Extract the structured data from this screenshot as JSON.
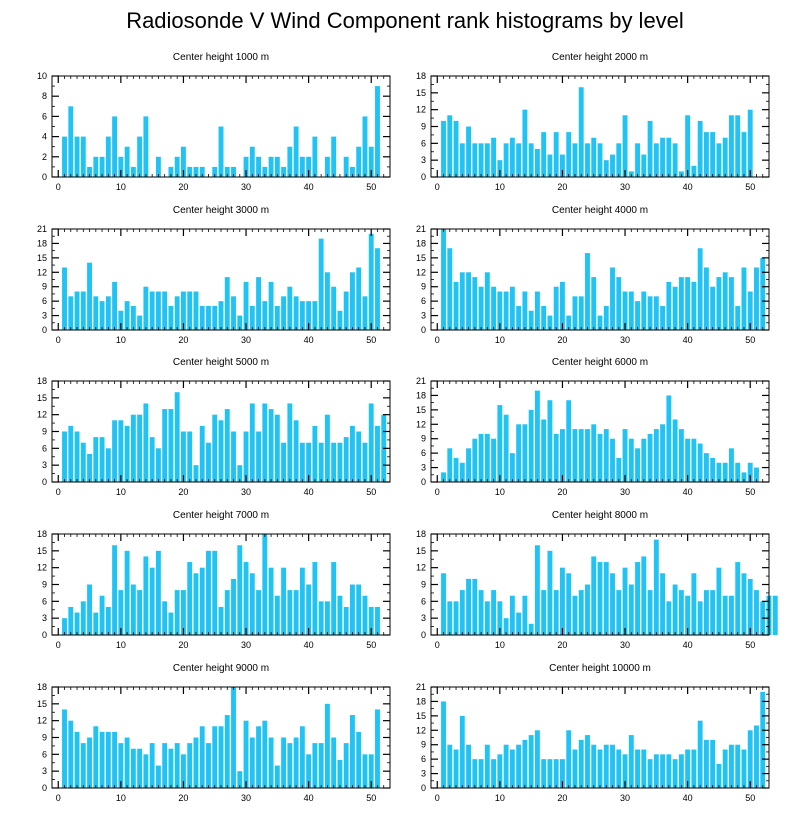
{
  "title": "Radiosonde V Wind Component rank histograms by level",
  "bar_color": "#1fc4f4",
  "chart_data": [
    {
      "type": "bar",
      "title": "Center height 1000 m",
      "xlim": [
        -1,
        53
      ],
      "ylim": [
        0,
        10
      ],
      "xticks": [
        0,
        10,
        20,
        30,
        40,
        50
      ],
      "yticks": [
        0,
        2,
        4,
        6,
        8,
        10
      ],
      "values": [
        4,
        7,
        4,
        4,
        1,
        2,
        2,
        4,
        6,
        2,
        3,
        1,
        4,
        6,
        0,
        2,
        0,
        1,
        2,
        3,
        1,
        1,
        1,
        0,
        1,
        5,
        1,
        1,
        0,
        2,
        3,
        2,
        1,
        2,
        2,
        1,
        3,
        5,
        2,
        2,
        4,
        0,
        2,
        4,
        0,
        2,
        1,
        3,
        6,
        3,
        9
      ]
    },
    {
      "type": "bar",
      "title": "Center height 2000 m",
      "xlim": [
        -1,
        53
      ],
      "ylim": [
        0,
        18
      ],
      "xticks": [
        0,
        10,
        20,
        30,
        40,
        50
      ],
      "yticks": [
        0,
        3,
        6,
        9,
        12,
        15,
        18
      ],
      "values": [
        10,
        11,
        10,
        6,
        9,
        6,
        6,
        6,
        7,
        3,
        6,
        7,
        6,
        12,
        6,
        5,
        8,
        4,
        8,
        4,
        8,
        6,
        16,
        6,
        7,
        6,
        3,
        4,
        6,
        11,
        1,
        6,
        4,
        10,
        6,
        7,
        7,
        6,
        1,
        11,
        2,
        10,
        8,
        8,
        6,
        7,
        11,
        11,
        8,
        12
      ]
    },
    {
      "type": "bar",
      "title": "Center height 3000 m",
      "xlim": [
        -1,
        53
      ],
      "ylim": [
        0,
        21
      ],
      "xticks": [
        0,
        10,
        20,
        30,
        40,
        50
      ],
      "yticks": [
        0,
        3,
        6,
        9,
        12,
        15,
        18,
        21
      ],
      "values": [
        13,
        7,
        8,
        8,
        14,
        7,
        6,
        7,
        10,
        4,
        6,
        5,
        3,
        9,
        8,
        8,
        8,
        5,
        7,
        8,
        8,
        8,
        5,
        5,
        5,
        6,
        11,
        7,
        3,
        10,
        5,
        11,
        6,
        10,
        5,
        7,
        9,
        7,
        6,
        6,
        6,
        19,
        12,
        9,
        4,
        8,
        12,
        13,
        7,
        20,
        17
      ]
    },
    {
      "type": "bar",
      "title": "Center height 4000 m",
      "xlim": [
        -1,
        53
      ],
      "ylim": [
        0,
        21
      ],
      "xticks": [
        0,
        10,
        20,
        30,
        40,
        50
      ],
      "yticks": [
        0,
        3,
        6,
        9,
        12,
        15,
        18,
        21
      ],
      "values": [
        21,
        17,
        10,
        12,
        12,
        11,
        9,
        12,
        9,
        8,
        8,
        9,
        5,
        8,
        4,
        8,
        5,
        3,
        9,
        10,
        3,
        7,
        7,
        16,
        11,
        3,
        5,
        13,
        11,
        8,
        8,
        6,
        8,
        7,
        7,
        5,
        10,
        9,
        11,
        11,
        10,
        17,
        13,
        9,
        11,
        12,
        11,
        5,
        13,
        8,
        13,
        15
      ]
    },
    {
      "type": "bar",
      "title": "Center height 5000 m",
      "xlim": [
        -1,
        53
      ],
      "ylim": [
        0,
        18
      ],
      "xticks": [
        0,
        10,
        20,
        30,
        40,
        50
      ],
      "yticks": [
        0,
        3,
        6,
        9,
        12,
        15,
        18
      ],
      "values": [
        9,
        10,
        9,
        7,
        5,
        8,
        8,
        6,
        11,
        11,
        10,
        12,
        12,
        14,
        8,
        6,
        13,
        13,
        16,
        9,
        9,
        3,
        10,
        7,
        12,
        11,
        13,
        9,
        3,
        9,
        14,
        9,
        14,
        13,
        12,
        7,
        14,
        11,
        7,
        7,
        10,
        7,
        12,
        7,
        7,
        8,
        10,
        9,
        7,
        14,
        10,
        12
      ]
    },
    {
      "type": "bar",
      "title": "Center height 6000 m",
      "xlim": [
        -1,
        53
      ],
      "ylim": [
        0,
        21
      ],
      "xticks": [
        0,
        10,
        20,
        30,
        40,
        50
      ],
      "yticks": [
        0,
        3,
        6,
        9,
        12,
        15,
        18,
        21
      ],
      "values": [
        2,
        7,
        5,
        4,
        7,
        9,
        10,
        10,
        9,
        16,
        14,
        6,
        12,
        12,
        15,
        19,
        13,
        17,
        10,
        11,
        17,
        11,
        11,
        11,
        12,
        10,
        11,
        9,
        5,
        11,
        9,
        7,
        9,
        10,
        11,
        12,
        18,
        13,
        11,
        9,
        9,
        8,
        6,
        5,
        4,
        4,
        7,
        4,
        2,
        4,
        3
      ]
    },
    {
      "type": "bar",
      "title": "Center height 7000 m",
      "xlim": [
        -1,
        53
      ],
      "ylim": [
        0,
        18
      ],
      "xticks": [
        0,
        10,
        20,
        30,
        40,
        50
      ],
      "yticks": [
        0,
        3,
        6,
        9,
        12,
        15,
        18
      ],
      "values": [
        3,
        5,
        4,
        6,
        9,
        4,
        7,
        5,
        16,
        8,
        15,
        9,
        8,
        14,
        12,
        15,
        6,
        4,
        8,
        8,
        13,
        11,
        12,
        15,
        15,
        5,
        8,
        10,
        16,
        13,
        11,
        8,
        18,
        12,
        7,
        12,
        8,
        8,
        12,
        9,
        13,
        6,
        6,
        13,
        7,
        5,
        9,
        9,
        7,
        5,
        5
      ]
    },
    {
      "type": "bar",
      "title": "Center height 8000 m",
      "xlim": [
        -1,
        53
      ],
      "ylim": [
        0,
        18
      ],
      "xticks": [
        0,
        10,
        20,
        30,
        40,
        50
      ],
      "yticks": [
        0,
        3,
        6,
        9,
        12,
        15,
        18
      ],
      "values": [
        11,
        6,
        6,
        8,
        10,
        10,
        8,
        6,
        8,
        6,
        3,
        7,
        4,
        7,
        2,
        16,
        8,
        15,
        8,
        12,
        11,
        7,
        8,
        9,
        14,
        13,
        13,
        11,
        8,
        12,
        9,
        13,
        14,
        8,
        17,
        11,
        6,
        9,
        8,
        7,
        11,
        6,
        8,
        8,
        12,
        7,
        7,
        13,
        11,
        10,
        8,
        6,
        7,
        7
      ]
    },
    {
      "type": "bar",
      "title": "Center height 9000 m",
      "xlim": [
        -1,
        53
      ],
      "ylim": [
        0,
        18
      ],
      "xticks": [
        0,
        10,
        20,
        30,
        40,
        50
      ],
      "yticks": [
        0,
        3,
        6,
        9,
        12,
        15,
        18
      ],
      "values": [
        14,
        12,
        10,
        8,
        9,
        11,
        10,
        10,
        10,
        8,
        9,
        7,
        7,
        6,
        8,
        4,
        8,
        7,
        8,
        6,
        8,
        9,
        11,
        8,
        11,
        11,
        13,
        18,
        3,
        12,
        9,
        11,
        12,
        9,
        4,
        9,
        8,
        9,
        11,
        6,
        8,
        8,
        15,
        9,
        5,
        8,
        13,
        10,
        6,
        6,
        14
      ]
    },
    {
      "type": "bar",
      "title": "Center height 10000 m",
      "xlim": [
        -1,
        53
      ],
      "ylim": [
        0,
        21
      ],
      "xticks": [
        0,
        10,
        20,
        30,
        40,
        50
      ],
      "yticks": [
        0,
        3,
        6,
        9,
        12,
        15,
        18,
        21
      ],
      "values": [
        18,
        9,
        8,
        15,
        9,
        6,
        6,
        9,
        6,
        7,
        9,
        8,
        9,
        10,
        11,
        12,
        6,
        6,
        6,
        6,
        12,
        8,
        10,
        11,
        9,
        8,
        9,
        9,
        8,
        7,
        11,
        8,
        8,
        6,
        7,
        7,
        7,
        6,
        7,
        8,
        8,
        14,
        10,
        10,
        5,
        8,
        9,
        9,
        8,
        12,
        13,
        20
      ]
    }
  ]
}
